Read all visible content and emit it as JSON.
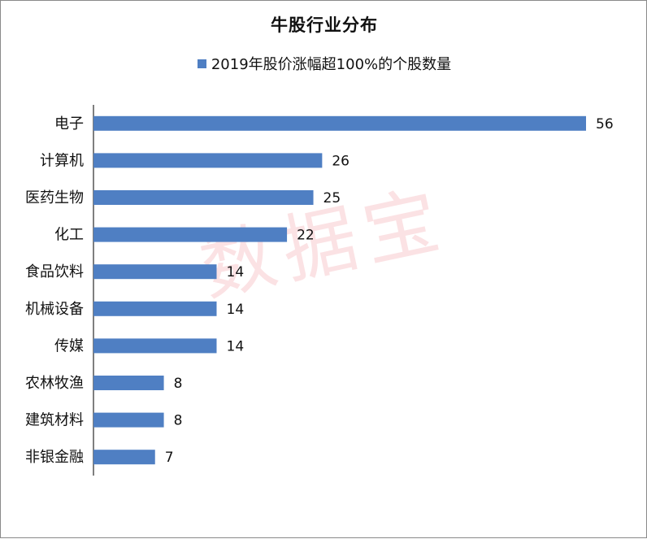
{
  "chart_data": {
    "type": "bar",
    "orientation": "horizontal",
    "title": "牛股行业分布",
    "categories": [
      "电子",
      "计算机",
      "医药生物",
      "化工",
      "食品饮料",
      "机械设备",
      "传媒",
      "农林牧渔",
      "建筑材料",
      "非银金融"
    ],
    "series": [
      {
        "name": "2019年股价涨幅超100%的个股数量",
        "values": [
          56,
          26,
          25,
          22,
          14,
          14,
          14,
          8,
          8,
          7
        ],
        "color": "#4f7fc3"
      }
    ],
    "xlim": [
      0,
      56
    ],
    "grid": false,
    "legend_position": "top",
    "data_labels": true
  },
  "watermark": {
    "text": "数据宝"
  }
}
